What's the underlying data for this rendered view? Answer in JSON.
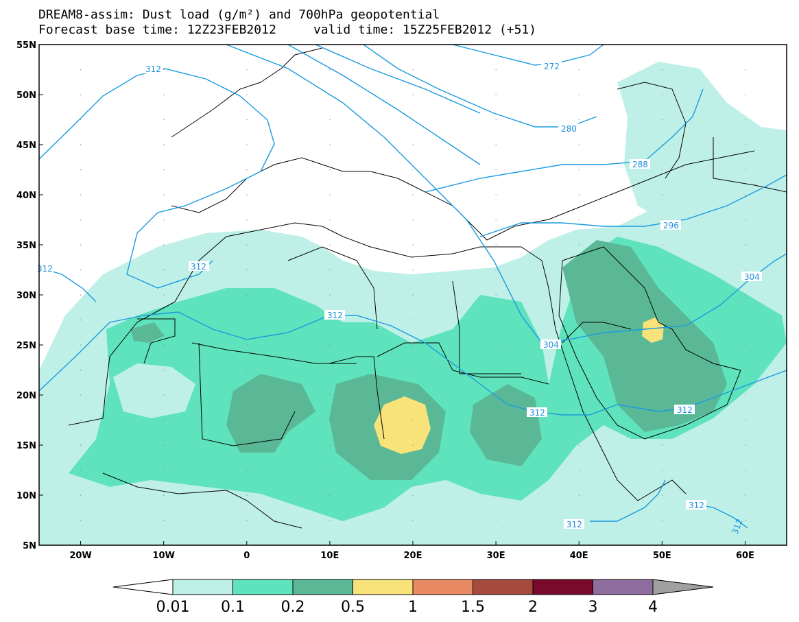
{
  "title": {
    "line1": "DREAM8-assim: Dust load (g/m²) and 700hPa geopotential",
    "line2": "Forecast base time: 12Z23FEB2012     valid time: 15Z25FEB2012 (+51)"
  },
  "map": {
    "lon_range": [
      -25,
      65
    ],
    "lat_range": [
      5,
      55
    ],
    "lat_labels": [
      "5N",
      "10N",
      "15N",
      "20N",
      "25N",
      "30N",
      "35N",
      "40N",
      "45N",
      "50N",
      "55N"
    ],
    "lon_labels": [
      "20W",
      "10W",
      "0",
      "10E",
      "20E",
      "30E",
      "40E",
      "50E",
      "60E"
    ],
    "contour_labels": [
      "312",
      "312",
      "312",
      "312",
      "312",
      "312",
      "312",
      "312",
      "312",
      "304",
      "304",
      "296",
      "288",
      "280",
      "272"
    ]
  },
  "colorbar": {
    "ticks": [
      "0.01",
      "0.1",
      "0.2",
      "0.5",
      "1",
      "1.5",
      "2",
      "3",
      "4"
    ],
    "colors": [
      "#bff0e8",
      "#5fe3bc",
      "#5ab896",
      "#f7e37a",
      "#e98a64",
      "#a64a3d",
      "#7a0a2b",
      "#8e6c9e"
    ],
    "end_colors": {
      "low": "#ffffff",
      "high": "#a0a0a0"
    }
  },
  "shading_colors": {
    "c001": "#bff0e8",
    "c01": "#5fe3bc",
    "c02": "#5ab896",
    "c05": "#f7e37a"
  },
  "contour_color": "#1a9ae0"
}
